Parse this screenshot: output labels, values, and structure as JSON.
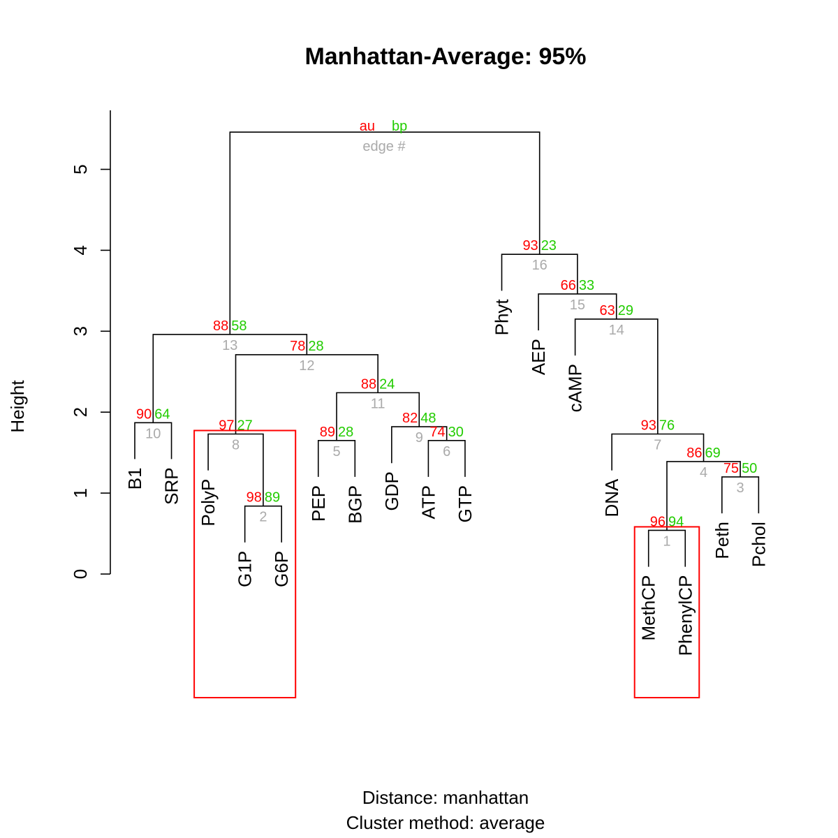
{
  "colors": {
    "au": "#ff0000",
    "bp": "#22cc00",
    "edge": "#aaaaaa",
    "line": "#000000",
    "highlight": "#ff0000"
  },
  "chart_data": {
    "type": "dendrogram",
    "title": "Manhattan-Average: 95%",
    "ylabel": "Height",
    "subtitle": [
      "Distance:  manhattan",
      "Cluster method: average"
    ],
    "ylim": [
      0,
      5
    ],
    "yticks": [
      0,
      1,
      2,
      3,
      4,
      5
    ],
    "legend": {
      "au": "au",
      "bp": "bp",
      "edge": "edge #"
    },
    "leaves": [
      "B1",
      "SRP",
      "PolyP",
      "G1P",
      "G6P",
      "PEP",
      "BGP",
      "GDP",
      "ATP",
      "GTP",
      "Phyt",
      "AEP",
      "cAMP",
      "DNA",
      "MethCP",
      "PhenylCP",
      "Peth",
      "Pchol"
    ],
    "merges": [
      {
        "edge": 1,
        "left": "MethCP",
        "right": "PhenylCP",
        "height": 0.54,
        "au": 96,
        "bp": 94
      },
      {
        "edge": 2,
        "left": "G1P",
        "right": "G6P",
        "height": 0.84,
        "au": 98,
        "bp": 89
      },
      {
        "edge": 3,
        "left": "Peth",
        "right": "Pchol",
        "height": 1.2,
        "au": 75,
        "bp": 50
      },
      {
        "edge": 4,
        "left": "e1",
        "right": "e3",
        "height": 1.39,
        "au": 86,
        "bp": 69
      },
      {
        "edge": 5,
        "left": "PEP",
        "right": "BGP",
        "height": 1.65,
        "au": 89,
        "bp": 28
      },
      {
        "edge": 6,
        "left": "ATP",
        "right": "GTP",
        "height": 1.65,
        "au": 74,
        "bp": 30
      },
      {
        "edge": 7,
        "left": "DNA",
        "right": "e4",
        "height": 1.73,
        "au": 93,
        "bp": 76
      },
      {
        "edge": 8,
        "left": "PolyP",
        "right": "e2",
        "height": 1.73,
        "au": 97,
        "bp": 27
      },
      {
        "edge": 9,
        "left": "GDP",
        "right": "e6",
        "height": 1.82,
        "au": 82,
        "bp": 48
      },
      {
        "edge": 10,
        "left": "B1",
        "right": "SRP",
        "height": 1.87,
        "au": 90,
        "bp": 64
      },
      {
        "edge": 11,
        "left": "e5",
        "right": "e9",
        "height": 2.24,
        "au": 88,
        "bp": 24
      },
      {
        "edge": 12,
        "left": "e8",
        "right": "e11",
        "height": 2.71,
        "au": 78,
        "bp": 28
      },
      {
        "edge": 13,
        "left": "e10",
        "right": "e12",
        "height": 2.96,
        "au": 88,
        "bp": 58
      },
      {
        "edge": 14,
        "left": "cAMP",
        "right": "e7",
        "height": 3.15,
        "au": 63,
        "bp": 29
      },
      {
        "edge": 15,
        "left": "AEP",
        "right": "e14",
        "height": 3.46,
        "au": 66,
        "bp": 33
      },
      {
        "edge": 16,
        "left": "Phyt",
        "right": "e15",
        "height": 3.95,
        "au": 93,
        "bp": 23
      },
      {
        "edge": 17,
        "left": "e13",
        "right": "e16",
        "height": 5.46,
        "au": null,
        "bp": null
      }
    ],
    "highlighted_clusters": [
      8,
      1
    ]
  }
}
